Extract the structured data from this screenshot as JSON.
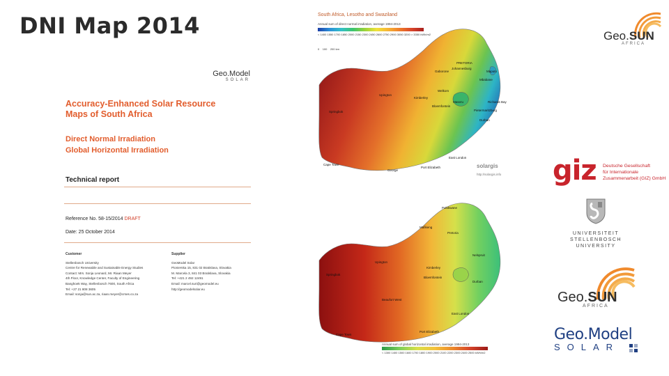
{
  "slide": {
    "title": "DNI Map 2014"
  },
  "report": {
    "logo_line1": "Geo.Model",
    "logo_line2": "SOLAR",
    "title_line1": "Accuracy-Enhanced Solar Resource",
    "title_line2": "Maps of South Africa",
    "subtitle_line1": "Direct Normal Irradiation",
    "subtitle_line2": "Global Horizontal Irradiation",
    "section": "Technical report",
    "reference": "Reference No. 58-15/2014",
    "reference_status": "DRAFT",
    "date": "Date: 25 October 2014",
    "customer": {
      "heading": "Customer",
      "lines": [
        "Stellenbosch University",
        "Centre for Renewable and Sustainable Energy Studies",
        "Contact: Mrs. Sonja Leonard, Mr. Riaan Meyer",
        "4th Floor, Knowledge Center, Faculty of Engineering",
        "Banghoek Way, Stellenbosch 7600, South Africa",
        "Tel: +27 21 808 3605",
        "Email: sonja@sun.ac.za, riaan.meyer@crses.co.za"
      ]
    },
    "supplier": {
      "heading": "Supplier",
      "lines": [
        "GeoModel Solar",
        "Pionierska 15, 831 02 Bratislava, Slovakia",
        "M. Marcela 3, 841 03 Bratislava, Slovakia",
        "Tel: +421 2 492 12491",
        "Email: marcel.suri@geomodel.eu",
        "http://geomodelsolar.eu"
      ]
    }
  },
  "map_top": {
    "title": "South Africa, Lesotho and Swaziland",
    "caption": "Annual sum of direct normal irradiation, average 1994-2013",
    "legend_values": [
      "< 1400",
      "1550",
      "1700",
      "1850",
      "2000",
      "2150",
      "2300",
      "2450",
      "2600",
      "2750",
      "2900",
      "3050",
      "3200",
      "> 3350",
      "kWh/m2"
    ],
    "scale": [
      "0",
      "100",
      "200 km"
    ],
    "cities": [
      "PRETORIA",
      "Johannesburg",
      "Gaborone",
      "Maputo",
      "Mbabane",
      "Welkom",
      "Maseru",
      "Bloemfontein",
      "Kimberley",
      "Upington",
      "Pietermaritzburg",
      "Durban",
      "Richards Bay",
      "East London",
      "Port Elizabeth",
      "George",
      "Cape Town",
      "Springbok"
    ],
    "source_logo": "solargis",
    "source_url": "http://solargis.info"
  },
  "map_bottom": {
    "caption": "Annual sum of global horizontal irradiation, average 1994-2013",
    "legend_values": [
      "< 1300",
      "1400",
      "1500",
      "1600",
      "1700",
      "1800",
      "1900",
      "2000",
      "2100",
      "2200",
      "2300",
      "2400",
      "2500",
      "kWh/m2"
    ],
    "cities": [
      "Polokwane",
      "Mafikeng",
      "Pretoria",
      "Nelspruit",
      "Upington",
      "Kimberley",
      "Bloemfontein",
      "Durban",
      "Springbok",
      "Beaufort West",
      "East London",
      "Port Elizabeth",
      "Cape Town"
    ]
  },
  "logos": {
    "geosun_top": {
      "word": "Geo.",
      "word_bold": "SUN",
      "sub": "AFRICA"
    },
    "giz": {
      "word": "giz",
      "text_lines": [
        "Deutsche Gesellschaft",
        "für Internationale",
        "Zusammenarbeit (GIZ) GmbH"
      ]
    },
    "stellenbosch": {
      "lines": [
        "UNIVERSITEIT",
        "STELLENBOSCH",
        "UNIVERSITY"
      ]
    },
    "geosun_bottom": {
      "word": "Geo.",
      "word_bold": "SUN",
      "sub": "AFRICA"
    },
    "geomodel": {
      "word": "Geo.Model",
      "sub": "SOLAR"
    }
  },
  "colors": {
    "accent_orange": "#e25d2d",
    "giz_red": "#c8242c",
    "geomodel_blue": "#1f3f82"
  }
}
